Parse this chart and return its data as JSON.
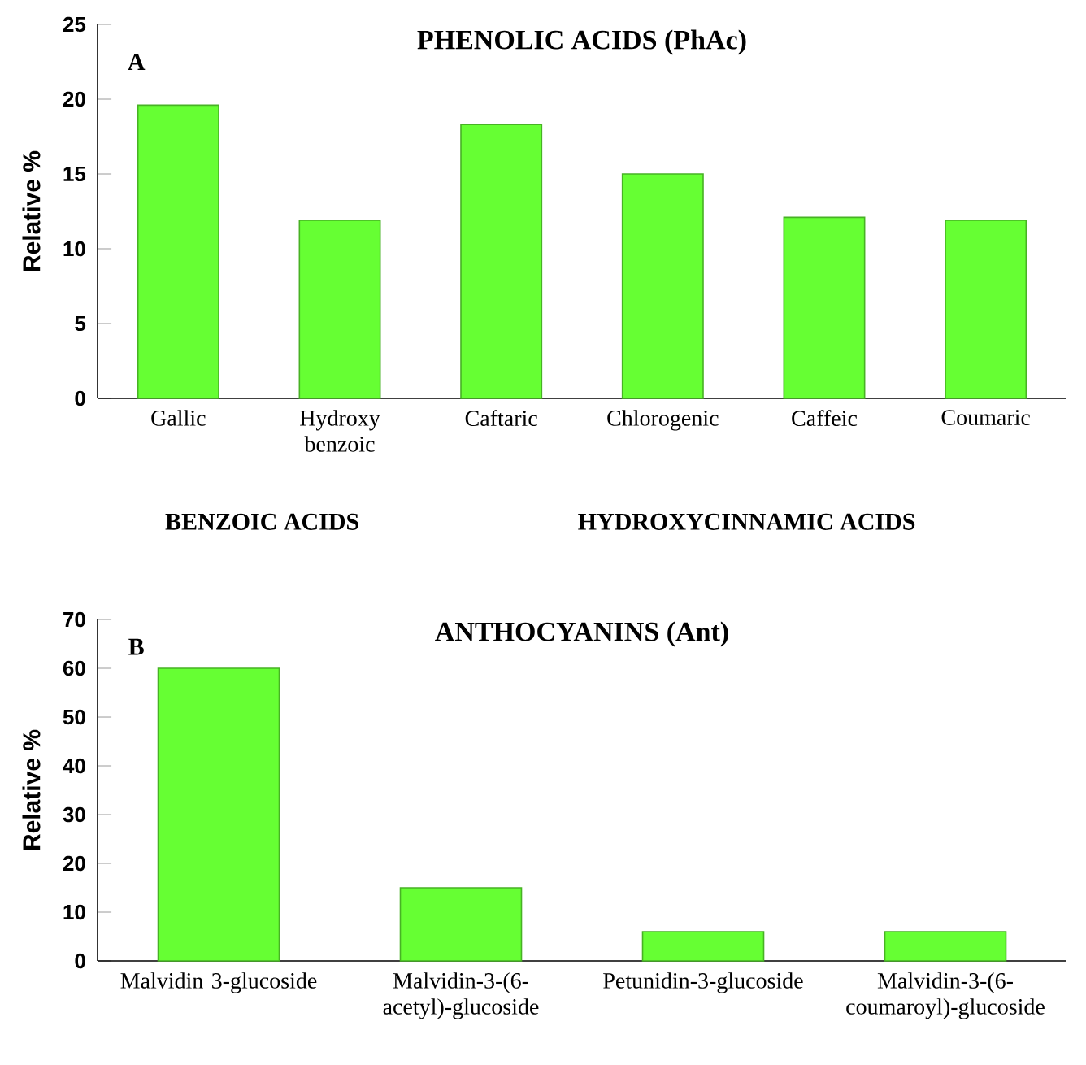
{
  "chart_data": [
    {
      "type": "bar",
      "title": "PHENOLIC ACIDS (PhAc)",
      "ylabel": "Relative %",
      "categories": [
        "Gallic",
        "Hydroxy benzoic",
        "Caftaric",
        "Chlorogenic",
        "Caffeic",
        "Coumaric"
      ],
      "values": [
        19.6,
        11.9,
        18.3,
        15,
        12.1,
        11.9
      ],
      "color": "#66ff33",
      "ylim": [
        0,
        25
      ],
      "yticks": [
        0,
        5,
        10,
        15,
        20,
        25
      ],
      "annotations": [
        "A",
        "BENZOIC ACIDS",
        "HYDROXYCINNAMIC ACIDS"
      ]
    },
    {
      "type": "bar",
      "title": "ANTHOCYANINS (Ant)",
      "ylabel": "Relative %",
      "categories": [
        "Malvidin 3-glucoside",
        "Malvidin-3-(6-acetyl)-glucoside",
        "Petunidin-3-glucoside",
        "Malvidin-3-(6-coumaroyl)-glucoside"
      ],
      "values": [
        60,
        15,
        6,
        6
      ],
      "color": "#66ff33",
      "ylim": [
        0,
        70
      ],
      "yticks": [
        0,
        10,
        20,
        30,
        40,
        50,
        60,
        70
      ],
      "annotations": [
        "B"
      ]
    }
  ]
}
